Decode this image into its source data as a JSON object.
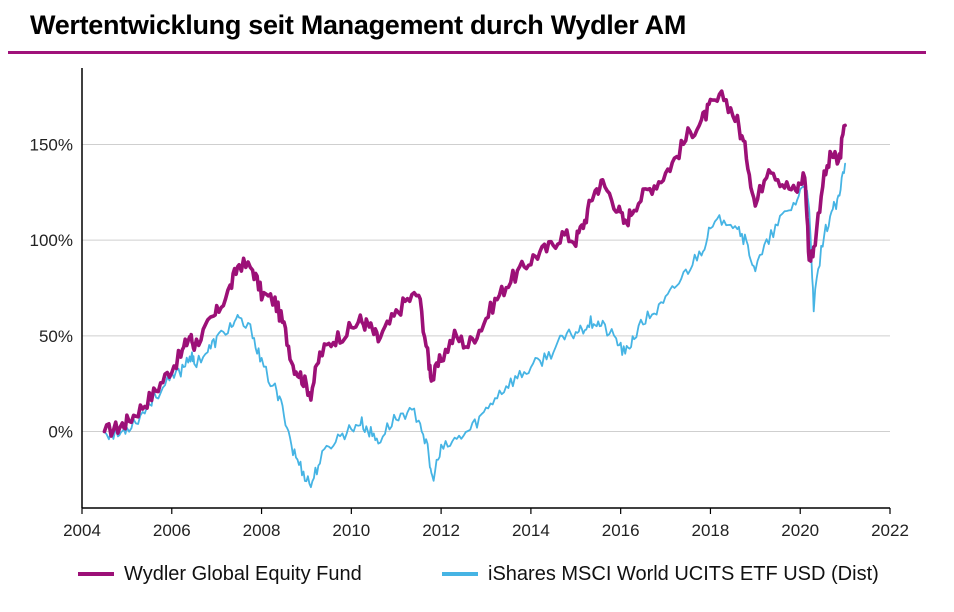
{
  "colors": {
    "accent": "#a0117a",
    "fund": "#9c1077",
    "index": "#46b4e4",
    "grid": "#cfcfcf"
  },
  "chart_data": {
    "type": "line",
    "title": "Wertentwicklung seit Management durch Wydler AM",
    "xlabel": "",
    "ylabel": "",
    "xlim": [
      2004,
      2022
    ],
    "ylim": [
      -40,
      190
    ],
    "x_ticks": [
      "2004",
      "2006",
      "2008",
      "2010",
      "2012",
      "2014",
      "2016",
      "2018",
      "2020",
      "2022"
    ],
    "y_ticks": [
      "0%",
      "50%",
      "100%",
      "150%"
    ],
    "y_tick_values": [
      0,
      50,
      100,
      150
    ],
    "grid": "horizontal",
    "legend_position": "bottom",
    "series": [
      {
        "name": "Wydler Global Equity Fund",
        "color": "#9c1077",
        "x": [
          2004.5,
          2004.8,
          2005.0,
          2005.3,
          2005.6,
          2005.9,
          2006.2,
          2006.4,
          2006.5,
          2006.8,
          2007.0,
          2007.3,
          2007.5,
          2007.8,
          2008.0,
          2008.3,
          2008.5,
          2008.7,
          2008.9,
          2009.1,
          2009.3,
          2009.6,
          2009.9,
          2010.2,
          2010.4,
          2010.6,
          2010.9,
          2011.2,
          2011.5,
          2011.7,
          2011.8,
          2012.0,
          2012.3,
          2012.6,
          2012.9,
          2013.2,
          2013.5,
          2013.8,
          2014.1,
          2014.4,
          2014.7,
          2015.0,
          2015.2,
          2015.4,
          2015.6,
          2015.9,
          2016.1,
          2016.3,
          2016.6,
          2016.9,
          2017.2,
          2017.5,
          2017.8,
          2018.0,
          2018.3,
          2018.6,
          2018.8,
          2019.0,
          2019.3,
          2019.6,
          2019.9,
          2020.1,
          2020.2,
          2020.3,
          2020.5,
          2020.7,
          2020.85,
          2021.0
        ],
        "values": [
          0,
          2,
          5,
          12,
          20,
          30,
          40,
          50,
          45,
          55,
          62,
          75,
          88,
          85,
          72,
          68,
          55,
          35,
          28,
          20,
          40,
          48,
          52,
          58,
          55,
          48,
          58,
          68,
          72,
          40,
          27,
          38,
          50,
          45,
          55,
          68,
          78,
          85,
          92,
          96,
          103,
          100,
          110,
          125,
          130,
          118,
          108,
          118,
          126,
          132,
          142,
          155,
          162,
          170,
          175,
          162,
          145,
          118,
          140,
          130,
          125,
          135,
          90,
          95,
          130,
          145,
          140,
          160
        ]
      },
      {
        "name": "iShares MSCI World UCITS ETF USD (Dist)",
        "color": "#46b4e4",
        "x": [
          2004.5,
          2004.8,
          2005.0,
          2005.3,
          2005.6,
          2005.9,
          2006.2,
          2006.4,
          2006.5,
          2006.8,
          2007.0,
          2007.3,
          2007.5,
          2007.8,
          2008.0,
          2008.3,
          2008.5,
          2008.7,
          2008.9,
          2009.1,
          2009.3,
          2009.6,
          2009.9,
          2010.2,
          2010.4,
          2010.6,
          2010.9,
          2011.2,
          2011.5,
          2011.7,
          2011.8,
          2012.0,
          2012.3,
          2012.6,
          2012.9,
          2013.2,
          2013.5,
          2013.8,
          2014.1,
          2014.4,
          2014.7,
          2015.0,
          2015.2,
          2015.4,
          2015.6,
          2015.9,
          2016.1,
          2016.3,
          2016.6,
          2016.9,
          2017.2,
          2017.5,
          2017.8,
          2018.0,
          2018.3,
          2018.6,
          2018.8,
          2019.0,
          2019.3,
          2019.6,
          2019.9,
          2020.1,
          2020.2,
          2020.3,
          2020.5,
          2020.7,
          2020.85,
          2021.0
        ],
        "values": [
          0,
          -2,
          2,
          8,
          18,
          25,
          32,
          40,
          36,
          42,
          48,
          55,
          58,
          52,
          35,
          22,
          10,
          -10,
          -20,
          -28,
          -15,
          -5,
          0,
          5,
          0,
          -5,
          5,
          10,
          8,
          -10,
          -25,
          -10,
          -5,
          0,
          8,
          18,
          25,
          30,
          35,
          40,
          48,
          52,
          55,
          58,
          55,
          48,
          40,
          50,
          60,
          65,
          75,
          85,
          95,
          105,
          112,
          108,
          98,
          85,
          100,
          112,
          120,
          130,
          115,
          65,
          100,
          115,
          120,
          140
        ]
      }
    ]
  }
}
